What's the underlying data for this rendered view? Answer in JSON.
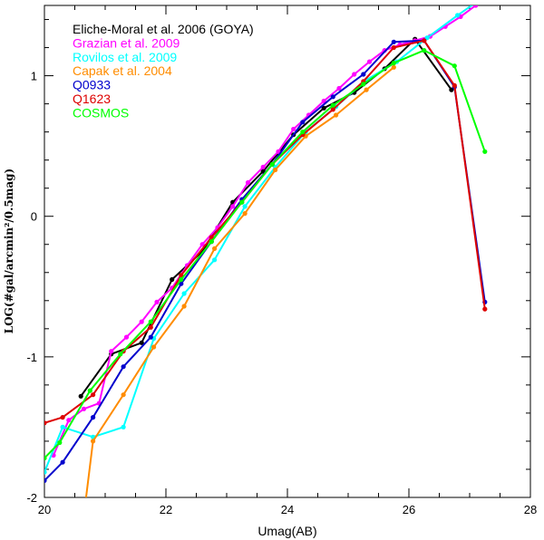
{
  "chart_data": {
    "type": "line",
    "xlabel": "Umag(AB)",
    "ylabel": "LOG(#gal/arcmin²/0.5mag)",
    "xlim": [
      20,
      28
    ],
    "ylim": [
      -2,
      1.5
    ],
    "xticks": [
      20,
      22,
      24,
      26,
      28
    ],
    "yticks": [
      -2,
      -1,
      0,
      1
    ],
    "legend_position": "top-left",
    "grid": false,
    "series": [
      {
        "name": "Eliche-Moral et al. 2006 (GOYA)",
        "color": "#000000",
        "x": [
          20.6,
          21.1,
          21.6,
          22.1,
          22.6,
          23.1,
          23.6,
          24.1,
          24.6,
          25.1,
          25.6,
          26.1,
          26.7
        ],
        "y": [
          -1.28,
          -0.98,
          -0.9,
          -0.45,
          -0.25,
          0.1,
          0.32,
          0.58,
          0.77,
          0.88,
          1.05,
          1.26,
          0.9
        ]
      },
      {
        "name": "Grazian et al. 2009",
        "color": "#ff00ff",
        "x": [
          20.15,
          20.4,
          20.65,
          20.9,
          21.1,
          21.35,
          21.6,
          21.85,
          22.1,
          22.35,
          22.6,
          22.85,
          23.1,
          23.35,
          23.6,
          23.85,
          24.1,
          24.35,
          24.6,
          24.85,
          25.1,
          25.35,
          25.6,
          25.85,
          26.1,
          26.35,
          26.6,
          26.85,
          27.1
        ],
        "y": [
          -1.7,
          -1.45,
          -1.37,
          -1.33,
          -0.96,
          -0.86,
          -0.75,
          -0.61,
          -0.51,
          -0.35,
          -0.2,
          -0.08,
          0.07,
          0.24,
          0.35,
          0.46,
          0.62,
          0.72,
          0.82,
          0.91,
          1.01,
          1.1,
          1.18,
          1.22,
          1.25,
          1.28,
          1.35,
          1.42,
          1.5
        ]
      },
      {
        "name": "Rovilos et al. 2009",
        "color": "#00ffff",
        "x": [
          20.0,
          20.3,
          20.8,
          21.3,
          21.8,
          22.3,
          22.8,
          23.3,
          23.8,
          24.3,
          24.8,
          25.3,
          25.8,
          26.3,
          26.8,
          27.1
        ],
        "y": [
          -1.82,
          -1.5,
          -1.57,
          -1.5,
          -0.87,
          -0.55,
          -0.31,
          0.07,
          0.35,
          0.6,
          0.78,
          0.97,
          1.1,
          1.27,
          1.43,
          1.52
        ]
      },
      {
        "name": "Capak et al. 2004",
        "color": "#ff8c00",
        "x": [
          20.6,
          20.8,
          21.3,
          21.8,
          22.3,
          22.8,
          23.3,
          23.8,
          24.3,
          24.8,
          25.3,
          25.75
        ],
        "y": [
          -2.3,
          -1.6,
          -1.27,
          -0.93,
          -0.64,
          -0.23,
          0.02,
          0.33,
          0.57,
          0.72,
          0.9,
          1.06
        ]
      },
      {
        "name": "Q0933",
        "color": "#0000cc",
        "x": [
          20.0,
          20.3,
          20.8,
          21.3,
          21.75,
          22.25,
          22.75,
          23.25,
          23.75,
          24.25,
          24.75,
          25.25,
          25.75,
          26.25,
          26.75,
          27.25
        ],
        "y": [
          -1.88,
          -1.75,
          -1.43,
          -1.07,
          -0.86,
          -0.48,
          -0.18,
          0.12,
          0.37,
          0.67,
          0.85,
          1.01,
          1.24,
          1.25,
          0.92,
          -0.61
        ]
      },
      {
        "name": "Q1623",
        "color": "#dd0000",
        "x": [
          20.0,
          20.3,
          20.8,
          21.3,
          21.75,
          22.25,
          22.75,
          23.25,
          23.75,
          24.25,
          24.75,
          25.25,
          25.75,
          26.25,
          26.75,
          27.25
        ],
        "y": [
          -1.47,
          -1.43,
          -1.27,
          -0.96,
          -0.79,
          -0.42,
          -0.15,
          0.1,
          0.37,
          0.58,
          0.76,
          0.96,
          1.2,
          1.25,
          0.93,
          -0.66
        ]
      },
      {
        "name": "COSMOS",
        "color": "#00ff00",
        "x": [
          20.0,
          20.25,
          20.75,
          21.25,
          21.75,
          22.25,
          22.75,
          23.25,
          23.75,
          24.25,
          24.75,
          25.25,
          25.75,
          26.25,
          26.75,
          27.25
        ],
        "y": [
          -1.72,
          -1.61,
          -1.24,
          -0.98,
          -0.75,
          -0.45,
          -0.18,
          0.1,
          0.37,
          0.6,
          0.79,
          0.94,
          1.09,
          1.18,
          1.07,
          0.46
        ]
      }
    ]
  }
}
